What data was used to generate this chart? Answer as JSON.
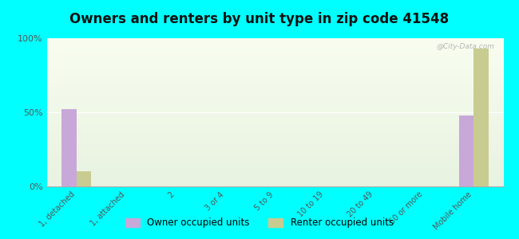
{
  "title": "Owners and renters by unit type in zip code 41548",
  "categories": [
    "1, detached",
    "1, attached",
    "2",
    "3 or 4",
    "5 to 9",
    "10 to 19",
    "20 to 49",
    "50 or more",
    "Mobile home"
  ],
  "owner_values": [
    52,
    0,
    0,
    0,
    0,
    0,
    0,
    0,
    48
  ],
  "renter_values": [
    10,
    0,
    0,
    0,
    0,
    0,
    0,
    0,
    93
  ],
  "owner_color": "#c8a8d8",
  "renter_color": "#c8cc90",
  "background_color": "#00ffff",
  "ylim": [
    0,
    100
  ],
  "yticks": [
    0,
    50,
    100
  ],
  "ytick_labels": [
    "0%",
    "50%",
    "100%"
  ],
  "bar_width": 0.3,
  "title_fontsize": 12,
  "watermark": "@City-Data.com"
}
